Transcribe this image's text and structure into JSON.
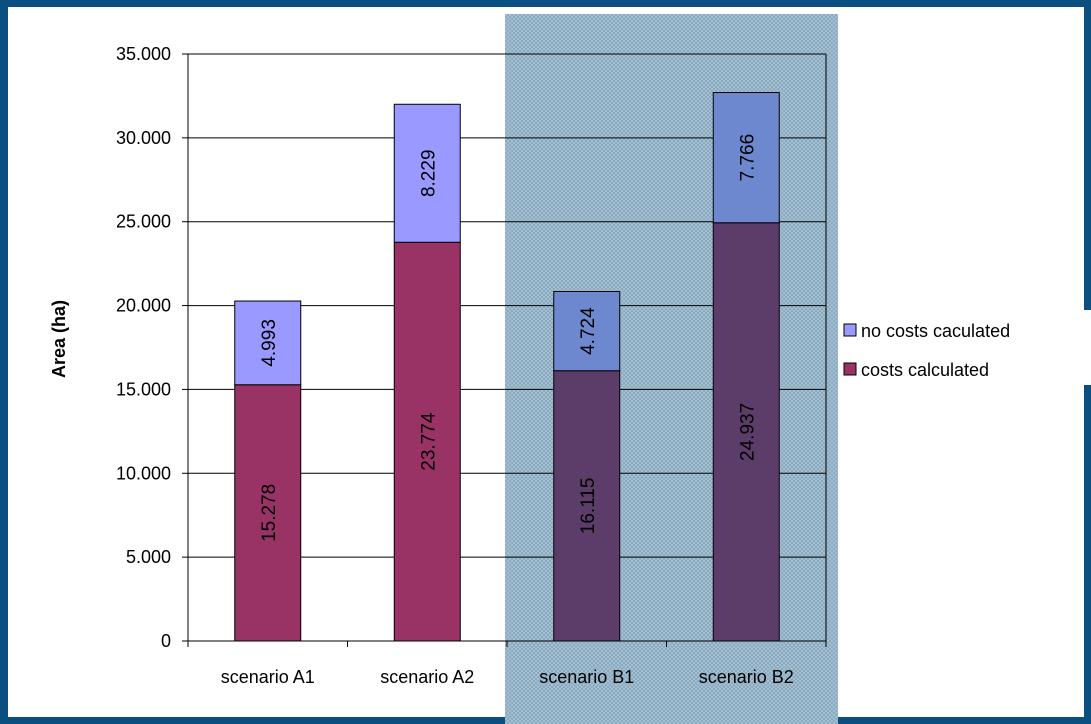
{
  "chart_data": {
    "type": "bar",
    "stacked": true,
    "categories": [
      "scenario A1",
      "scenario A2",
      "scenario B1",
      "scenario B2"
    ],
    "series": [
      {
        "name": "costs calculated",
        "values": [
          15278,
          23774,
          16115,
          24937
        ],
        "labels": [
          "15.278",
          "23.774",
          "16.115",
          "24.937"
        ]
      },
      {
        "name": "no costs caculated",
        "values": [
          4993,
          8229,
          4724,
          7766
        ],
        "labels": [
          "4.993",
          "8.229",
          "4.724",
          "7.766"
        ]
      }
    ],
    "title": "",
    "xlabel": "",
    "ylabel": "Area (ha)",
    "ylim": [
      0,
      35000
    ],
    "yticks": [
      0,
      5000,
      10000,
      15000,
      20000,
      25000,
      30000,
      35000
    ],
    "ytick_labels": [
      "0",
      "5.000",
      "10.000",
      "15.000",
      "20.000",
      "25.000",
      "30.000",
      "35.000"
    ],
    "grid": true,
    "legend_position": "right",
    "highlight_region": {
      "categories": [
        "scenario B1",
        "scenario B2"
      ],
      "color": "#a9c3d4",
      "style": "cross-hatch"
    },
    "colors": {
      "costs calculated": "#993366",
      "no costs caculated": "#9999ff",
      "costs calculated (highlighted)": "#5c3d6a",
      "no costs caculated (highlighted)": "#6e88cf",
      "background": "#0b4f80"
    }
  }
}
